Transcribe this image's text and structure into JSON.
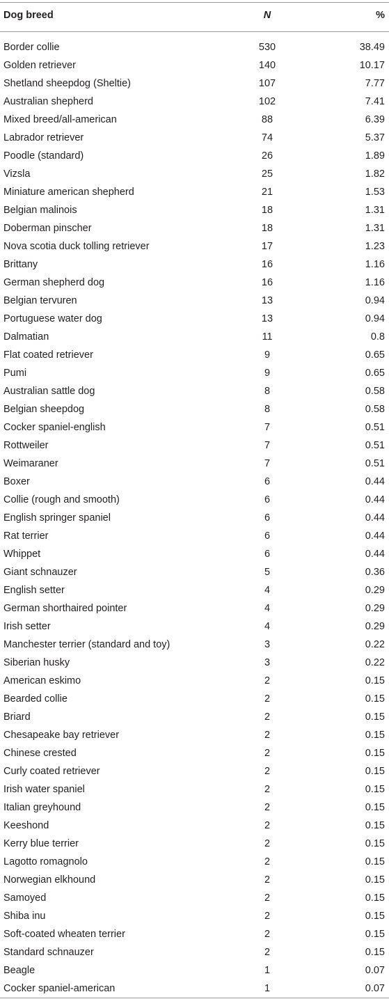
{
  "table": {
    "header": [
      "Dog breed",
      "N",
      "%"
    ],
    "rows": [
      [
        "Border collie",
        "530",
        "38.49"
      ],
      [
        "Golden retriever",
        "140",
        "10.17"
      ],
      [
        "Shetland sheepdog (Sheltie)",
        "107",
        "7.77"
      ],
      [
        "Australian shepherd",
        "102",
        "7.41"
      ],
      [
        "Mixed breed/all-american",
        "88",
        "6.39"
      ],
      [
        "Labrador retriever",
        "74",
        "5.37"
      ],
      [
        "Poodle (standard)",
        "26",
        "1.89"
      ],
      [
        "Vizsla",
        "25",
        "1.82"
      ],
      [
        "Miniature american shepherd",
        "21",
        "1.53"
      ],
      [
        "Belgian malinois",
        "18",
        "1.31"
      ],
      [
        "Doberman pinscher",
        "18",
        "1.31"
      ],
      [
        "Nova scotia duck tolling retriever",
        "17",
        "1.23"
      ],
      [
        "Brittany",
        "16",
        "1.16"
      ],
      [
        "German shepherd dog",
        "16",
        "1.16"
      ],
      [
        "Belgian tervuren",
        "13",
        "0.94"
      ],
      [
        "Portuguese water dog",
        "13",
        "0.94"
      ],
      [
        "Dalmatian",
        "11",
        "0.8"
      ],
      [
        "Flat coated retriever",
        "9",
        "0.65"
      ],
      [
        "Pumi",
        "9",
        "0.65"
      ],
      [
        "Australian sattle dog",
        "8",
        "0.58"
      ],
      [
        "Belgian sheepdog",
        "8",
        "0.58"
      ],
      [
        "Cocker spaniel-english",
        "7",
        "0.51"
      ],
      [
        "Rottweiler",
        "7",
        "0.51"
      ],
      [
        "Weimaraner",
        "7",
        "0.51"
      ],
      [
        "Boxer",
        "6",
        "0.44"
      ],
      [
        "Collie (rough and smooth)",
        "6",
        "0.44"
      ],
      [
        "English springer spaniel",
        "6",
        "0.44"
      ],
      [
        "Rat terrier",
        "6",
        "0.44"
      ],
      [
        "Whippet",
        "6",
        "0.44"
      ],
      [
        "Giant schnauzer",
        "5",
        "0.36"
      ],
      [
        "English setter",
        "4",
        "0.29"
      ],
      [
        "German shorthaired pointer",
        "4",
        "0.29"
      ],
      [
        "Irish setter",
        "4",
        "0.29"
      ],
      [
        "Manchester terrier (standard and toy)",
        "3",
        "0.22"
      ],
      [
        "Siberian husky",
        "3",
        "0.22"
      ],
      [
        "American eskimo",
        "2",
        "0.15"
      ],
      [
        "Bearded collie",
        "2",
        "0.15"
      ],
      [
        "Briard",
        "2",
        "0.15"
      ],
      [
        "Chesapeake bay retriever",
        "2",
        "0.15"
      ],
      [
        "Chinese crested",
        "2",
        "0.15"
      ],
      [
        "Curly coated retriever",
        "2",
        "0.15"
      ],
      [
        "Irish water spaniel",
        "2",
        "0.15"
      ],
      [
        "Italian greyhound",
        "2",
        "0.15"
      ],
      [
        "Keeshond",
        "2",
        "0.15"
      ],
      [
        "Kerry blue terrier",
        "2",
        "0.15"
      ],
      [
        "Lagotto romagnolo",
        "2",
        "0.15"
      ],
      [
        "Norwegian elkhound",
        "2",
        "0.15"
      ],
      [
        "Samoyed",
        "2",
        "0.15"
      ],
      [
        "Shiba inu",
        "2",
        "0.15"
      ],
      [
        "Soft-coated wheaten terrier",
        "2",
        "0.15"
      ],
      [
        "Standard schnauzer",
        "2",
        "0.15"
      ],
      [
        "Beagle",
        "1",
        "0.07"
      ],
      [
        "Cocker spaniel-american",
        "1",
        "0.07"
      ]
    ]
  }
}
